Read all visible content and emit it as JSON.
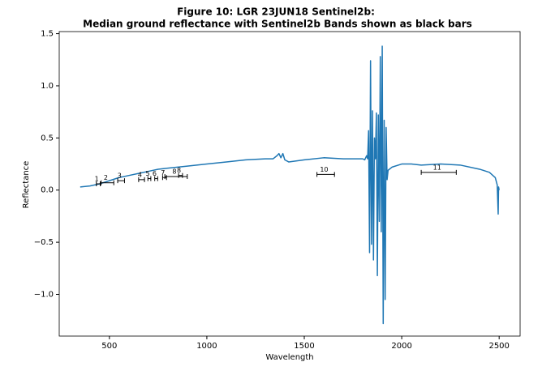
{
  "chart_data": {
    "type": "line",
    "title": "Figure 10: LGR 23JUN18  Sentinel2b:",
    "subtitle": "Median ground reflectance with Sentinel2b Bands shown as black bars",
    "x_label": "Wavelength",
    "y_label": "Reflectance",
    "color": "#1f77b4",
    "x": [
      350,
      400,
      450,
      500,
      550,
      600,
      650,
      700,
      750,
      800,
      900,
      1000,
      1100,
      1200,
      1300,
      1340,
      1360,
      1370,
      1380,
      1390,
      1400,
      1420,
      1500,
      1600,
      1700,
      1800,
      1810,
      1820,
      1825,
      1830,
      1835,
      1840,
      1845,
      1850,
      1855,
      1860,
      1865,
      1870,
      1875,
      1880,
      1885,
      1890,
      1895,
      1900,
      1905,
      1910,
      1915,
      1920,
      1925,
      1930,
      1950,
      2000,
      2050,
      2100,
      2200,
      2300,
      2400,
      2450,
      2480,
      2490,
      2495,
      2497,
      2500
    ],
    "values": [
      0.03,
      0.04,
      0.06,
      0.09,
      0.12,
      0.14,
      0.16,
      0.18,
      0.2,
      0.21,
      0.23,
      0.25,
      0.27,
      0.29,
      0.3,
      0.3,
      0.33,
      0.35,
      0.31,
      0.35,
      0.29,
      0.27,
      0.29,
      0.31,
      0.3,
      0.3,
      0.29,
      0.33,
      0.3,
      0.57,
      -0.6,
      1.24,
      -0.52,
      0.76,
      -0.67,
      0.5,
      0.3,
      0.74,
      -0.82,
      0.72,
      -0.3,
      1.28,
      -0.4,
      1.38,
      -1.28,
      0.67,
      -1.05,
      0.6,
      0.1,
      0.19,
      0.22,
      0.25,
      0.25,
      0.24,
      0.25,
      0.24,
      0.2,
      0.17,
      0.12,
      0.05,
      -0.23,
      0.03,
      0.0
    ],
    "bands": {
      "labels": [
        "1",
        "2",
        "3",
        "4",
        "5",
        "6",
        "7",
        "8",
        "8",
        "10",
        "11"
      ],
      "centers": [
        443,
        490,
        560,
        665,
        705,
        740,
        783,
        842,
        865,
        1610,
        2190
      ],
      "widths": [
        20,
        65,
        35,
        30,
        15,
        15,
        20,
        115,
        20,
        90,
        180
      ],
      "values": [
        0.06,
        0.07,
        0.09,
        0.1,
        0.11,
        0.11,
        0.12,
        0.13,
        0.14,
        0.15,
        0.17
      ]
    },
    "xlim": [
      242.5,
      2607.5
    ],
    "ylim": [
      -1.4,
      1.52
    ],
    "xticks": [
      500,
      1000,
      1500,
      2000,
      2500
    ],
    "yticks": [
      {
        "value": -1.0,
        "label": "−1.0"
      },
      {
        "value": -0.5,
        "label": "−0.5"
      },
      {
        "value": 0.0,
        "label": "0.0"
      },
      0.5,
      {
        "value": 1.0,
        "label": "1.0"
      },
      1.5
    ]
  }
}
